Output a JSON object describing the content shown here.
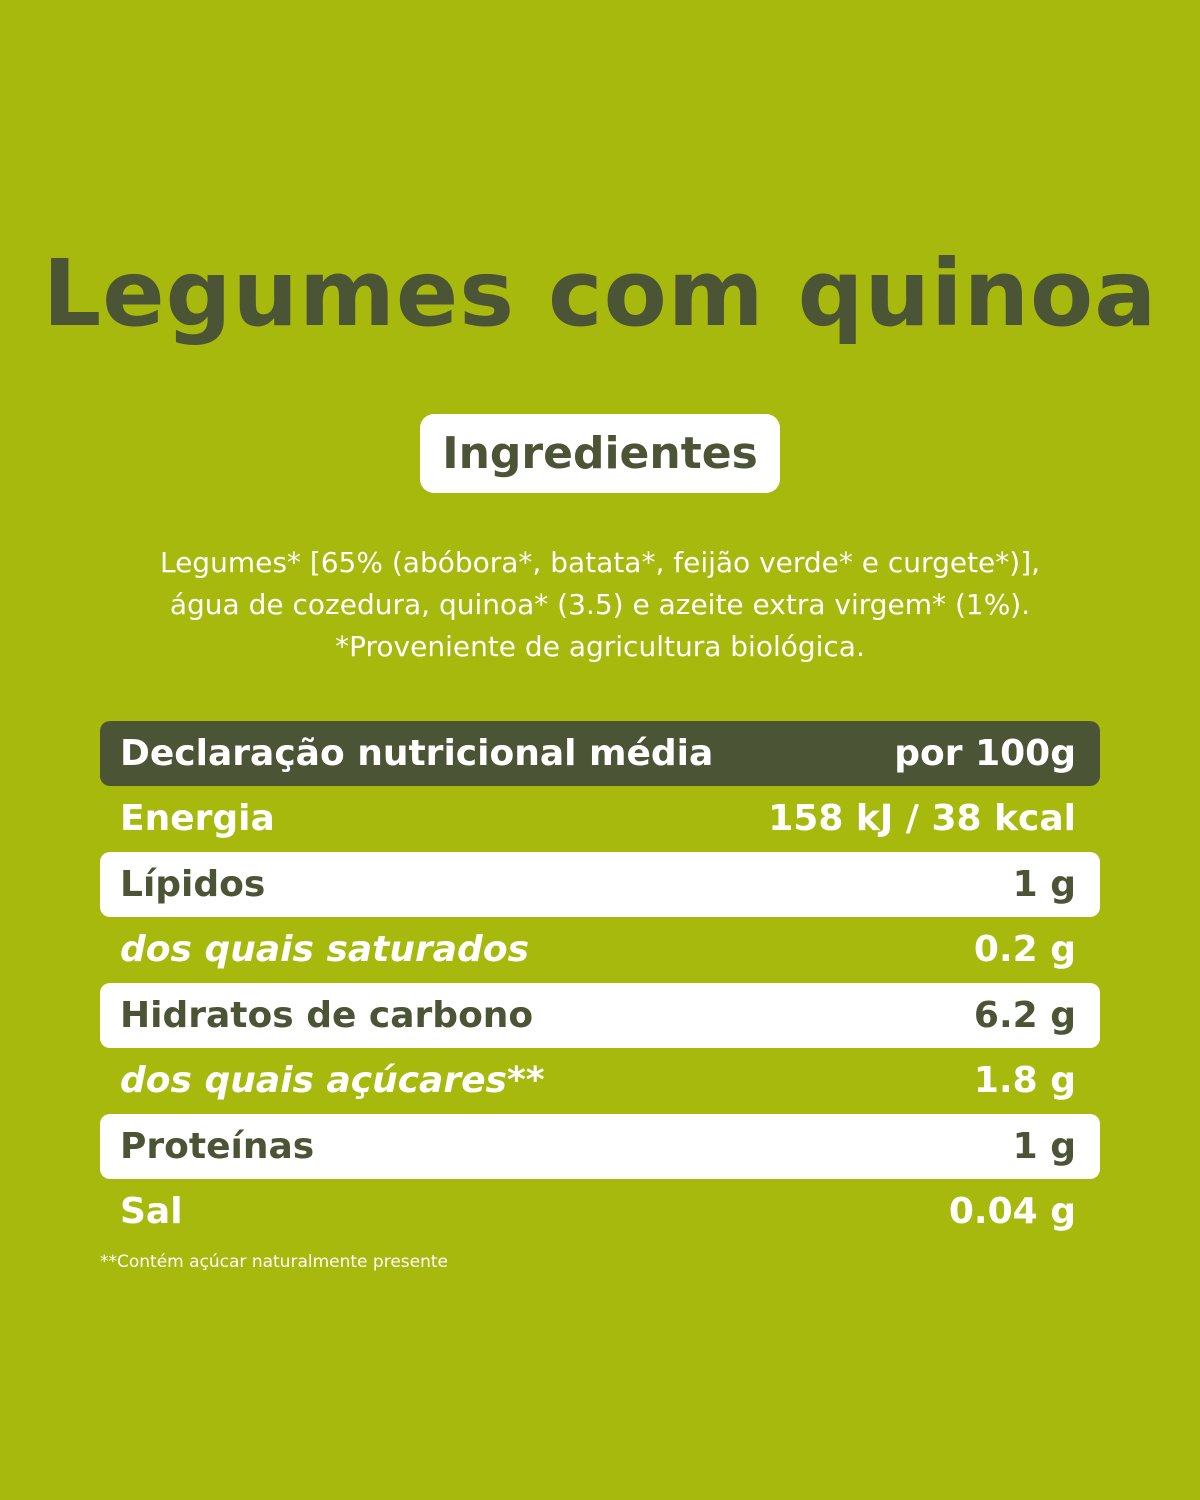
{
  "title": "Legumes com quinoa",
  "ingredients": {
    "heading": "Ingredientes",
    "lines": [
      "Legumes* [65% (abóbora*, batata*, feijão verde* e curgete*)],",
      "água de cozedura, quinoa* (3.5) e azeite extra virgem* (1%).",
      "*Proveniente de agricultura biológica."
    ]
  },
  "table": {
    "header": [
      "Declaração nutricional média",
      "por 100g"
    ],
    "rows": [
      [
        "Energia",
        "158 kJ / 38 kcal"
      ],
      [
        "Lípidos",
        "1 g"
      ],
      [
        "dos quais saturados",
        "0.2 g"
      ],
      [
        "Hidratos de carbono",
        "6.2 g"
      ],
      [
        "dos quais açúcares**",
        "1.8 g"
      ],
      [
        "Proteínas",
        "1 g"
      ],
      [
        "Sal",
        "0.04 g"
      ]
    ]
  },
  "footnote": "**Contém açúcar naturalmente presente"
}
